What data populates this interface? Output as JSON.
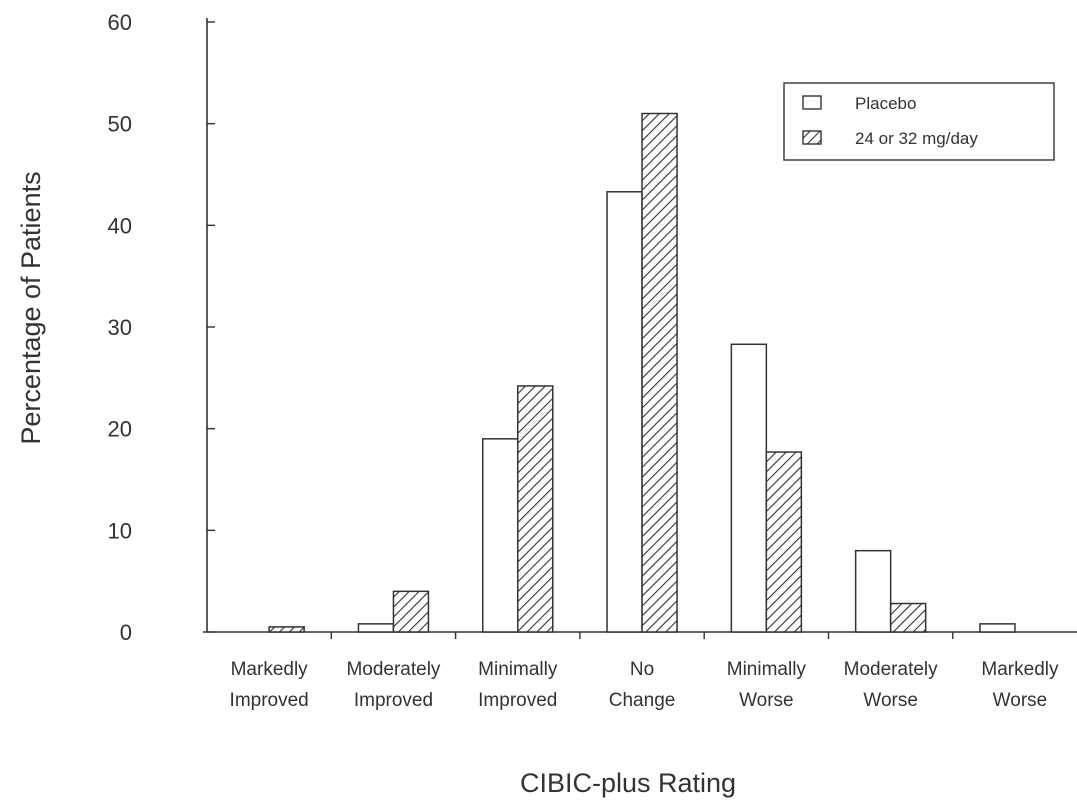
{
  "chart_data": {
    "type": "bar",
    "title": "",
    "xlabel": "CIBIC-plus Rating",
    "ylabel": "Percentage of Patients",
    "ylim": [
      0,
      60
    ],
    "yticks": [
      "0",
      "10",
      "20",
      "30",
      "40",
      "50",
      "60"
    ],
    "categories": [
      [
        "Markedly",
        "Improved"
      ],
      [
        "Moderately",
        "Improved"
      ],
      [
        "Minimally",
        "Improved"
      ],
      [
        "No",
        "Change"
      ],
      [
        "Minimally",
        "Worse"
      ],
      [
        "Moderately",
        "Worse"
      ],
      [
        "Markedly",
        "Worse"
      ]
    ],
    "series": [
      {
        "name": "Placebo",
        "pattern": "open",
        "values": [
          0,
          0.8,
          19,
          43.3,
          28.3,
          8,
          0.8
        ]
      },
      {
        "name": "24 or 32 mg/day",
        "pattern": "hatched",
        "values": [
          0.5,
          4,
          24.2,
          51,
          17.7,
          2.8,
          0
        ]
      }
    ],
    "legend_position": "top-right",
    "grid": false,
    "colors": {
      "placebo_fill": "#ffffff",
      "hatch": "#333333",
      "stroke": "#333333"
    }
  }
}
